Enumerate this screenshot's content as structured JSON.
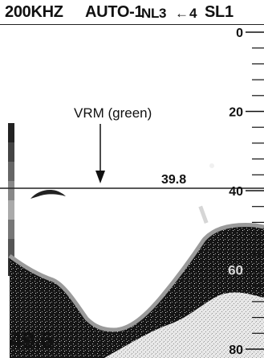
{
  "status_bar": {
    "frequency": "200KHZ",
    "gain_mode": "AUTO-1",
    "noise_limiter": "NL3",
    "advance_arrow": "←",
    "advance_speed": "4",
    "signal_level": "SL1"
  },
  "vrm": {
    "annotation": "VRM (green)",
    "depth_value": "39.8",
    "line_color": "#222222"
  },
  "depth_scale": {
    "labels": [
      {
        "text": "0",
        "depth": 0
      },
      {
        "text": "20",
        "depth": 20
      },
      {
        "text": "40",
        "depth": 40
      },
      {
        "text": "60",
        "depth": 60
      },
      {
        "text": "80",
        "depth": 80
      }
    ],
    "range_max": 80
  },
  "readout": {
    "current_depth": "49.6"
  },
  "colors": {
    "background": "#ffffff",
    "echo_dark": "#111111",
    "echo_light": "#e6e6e6",
    "bottom_edge": "#9a9a9a"
  }
}
